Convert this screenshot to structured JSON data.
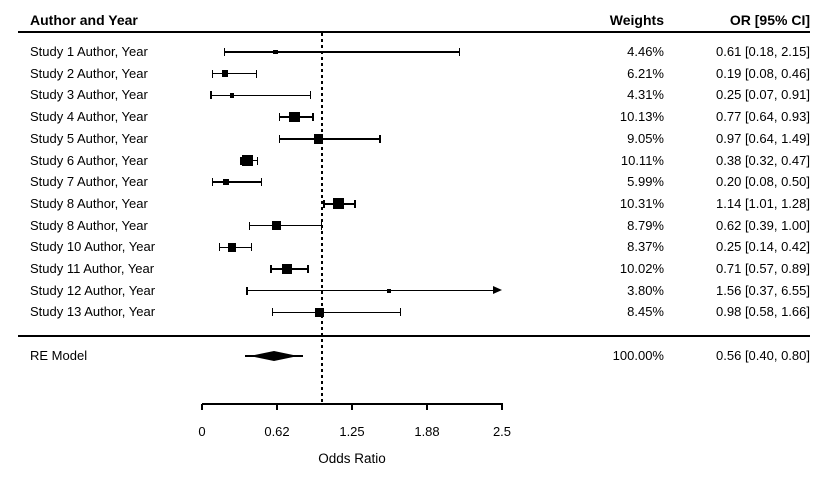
{
  "header": {
    "author_col": "Author and Year",
    "weights_col": "Weights",
    "or_col": "OR [95% CI]"
  },
  "chart_data": {
    "type": "scatter",
    "variant": "forest-plot",
    "title": "",
    "xlabel": "Odds Ratio",
    "xlim": [
      0,
      2.5
    ],
    "reference_line": 1.0,
    "grid": false,
    "x_ticks": [
      {
        "value": 0,
        "label": "0"
      },
      {
        "value": 0.625,
        "label": "0.62"
      },
      {
        "value": 1.25,
        "label": "1.25"
      },
      {
        "value": 1.875,
        "label": "1.88"
      },
      {
        "value": 2.5,
        "label": "2.5"
      }
    ],
    "rows": [
      {
        "label": "Study 1 Author, Year",
        "weight": "4.46%",
        "weight_pct": 4.46,
        "or": 0.61,
        "ci_low": 0.18,
        "ci_high": 2.15,
        "or_text": "0.61 [0.18, 2.15]"
      },
      {
        "label": "Study 2 Author, Year",
        "weight": "6.21%",
        "weight_pct": 6.21,
        "or": 0.19,
        "ci_low": 0.08,
        "ci_high": 0.46,
        "or_text": "0.19 [0.08, 0.46]"
      },
      {
        "label": "Study 3 Author, Year",
        "weight": "4.31%",
        "weight_pct": 4.31,
        "or": 0.25,
        "ci_low": 0.07,
        "ci_high": 0.91,
        "or_text": "0.25 [0.07, 0.91]"
      },
      {
        "label": "Study 4 Author, Year",
        "weight": "10.13%",
        "weight_pct": 10.13,
        "or": 0.77,
        "ci_low": 0.64,
        "ci_high": 0.93,
        "or_text": "0.77 [0.64, 0.93]"
      },
      {
        "label": "Study 5 Author, Year",
        "weight": "9.05%",
        "weight_pct": 9.05,
        "or": 0.97,
        "ci_low": 0.64,
        "ci_high": 1.49,
        "or_text": "0.97 [0.64, 1.49]"
      },
      {
        "label": "Study 6 Author, Year",
        "weight": "10.11%",
        "weight_pct": 10.11,
        "or": 0.38,
        "ci_low": 0.32,
        "ci_high": 0.47,
        "or_text": "0.38 [0.32, 0.47]"
      },
      {
        "label": "Study 7 Author, Year",
        "weight": "5.99%",
        "weight_pct": 5.99,
        "or": 0.2,
        "ci_low": 0.08,
        "ci_high": 0.5,
        "or_text": "0.20 [0.08, 0.50]"
      },
      {
        "label": "Study 8 Author, Year",
        "weight": "10.31%",
        "weight_pct": 10.31,
        "or": 1.14,
        "ci_low": 1.01,
        "ci_high": 1.28,
        "or_text": "1.14 [1.01, 1.28]"
      },
      {
        "label": "Study 8 Author, Year",
        "weight": "8.79%",
        "weight_pct": 8.79,
        "or": 0.62,
        "ci_low": 0.39,
        "ci_high": 1.0,
        "or_text": "0.62 [0.39, 1.00]"
      },
      {
        "label": "Study 10 Author, Year",
        "weight": "8.37%",
        "weight_pct": 8.37,
        "or": 0.25,
        "ci_low": 0.14,
        "ci_high": 0.42,
        "or_text": "0.25 [0.14, 0.42]"
      },
      {
        "label": "Study 11 Author, Year",
        "weight": "10.02%",
        "weight_pct": 10.02,
        "or": 0.71,
        "ci_low": 0.57,
        "ci_high": 0.89,
        "or_text": "0.71 [0.57, 0.89]"
      },
      {
        "label": "Study 12 Author, Year",
        "weight": "3.80%",
        "weight_pct": 3.8,
        "or": 1.56,
        "ci_low": 0.37,
        "ci_high": 6.55,
        "or_text": "1.56 [0.37, 6.55]"
      },
      {
        "label": "Study 13 Author, Year",
        "weight": "8.45%",
        "weight_pct": 8.45,
        "or": 0.98,
        "ci_low": 0.58,
        "ci_high": 1.66,
        "or_text": "0.98 [0.58, 1.66]"
      }
    ],
    "summary": {
      "label": "RE Model",
      "weight": "100.00%",
      "weight_pct": 100.0,
      "or": 0.56,
      "ci_low": 0.4,
      "ci_high": 0.8,
      "or_text": "0.56 [0.40, 0.80]"
    },
    "colors": {
      "foreground": "#000000",
      "background": "#ffffff"
    }
  }
}
